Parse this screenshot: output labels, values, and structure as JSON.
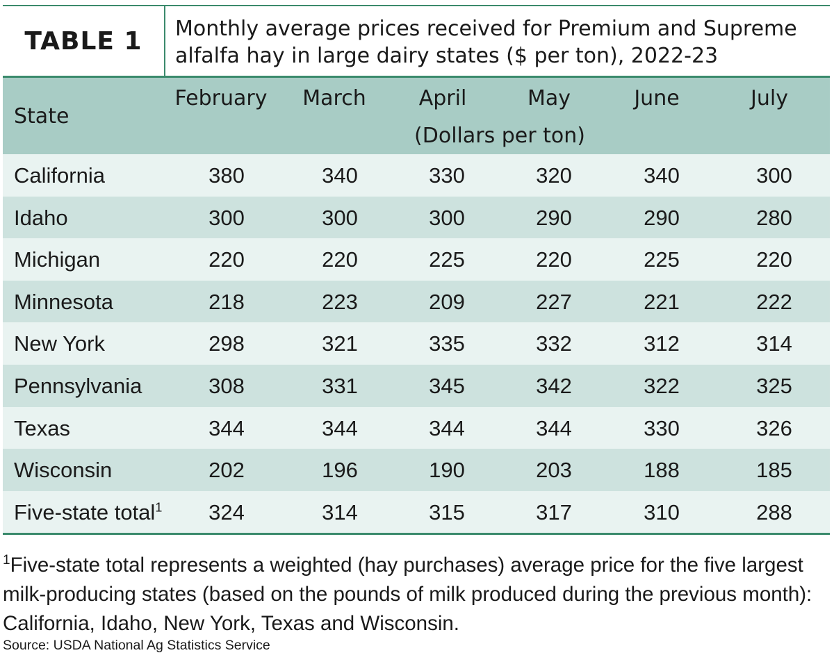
{
  "header": {
    "label": "TABLE 1",
    "title": "Monthly average prices received for Premium and Supreme alfalfa hay in large dairy states ($ per ton), 2022-23"
  },
  "table": {
    "columns": [
      "State",
      "February",
      "March",
      "April",
      "May",
      "June",
      "July"
    ],
    "unit": "(Dollars per ton)",
    "rows": [
      {
        "state": "California",
        "values": [
          380,
          340,
          330,
          320,
          340,
          300
        ]
      },
      {
        "state": "Idaho",
        "values": [
          300,
          300,
          300,
          290,
          290,
          280
        ]
      },
      {
        "state": "Michigan",
        "values": [
          220,
          220,
          225,
          220,
          225,
          220
        ]
      },
      {
        "state": "Minnesota",
        "values": [
          218,
          223,
          209,
          227,
          221,
          222
        ]
      },
      {
        "state": "New York",
        "values": [
          298,
          321,
          335,
          332,
          312,
          314
        ]
      },
      {
        "state": "Pennsylvania",
        "values": [
          308,
          331,
          345,
          342,
          322,
          325
        ]
      },
      {
        "state": "Texas",
        "values": [
          344,
          344,
          344,
          344,
          330,
          326
        ]
      },
      {
        "state": "Wisconsin",
        "values": [
          202,
          196,
          190,
          203,
          188,
          185
        ]
      },
      {
        "state": "Five-state total",
        "note": "1",
        "values": [
          324,
          314,
          315,
          317,
          310,
          288
        ]
      }
    ]
  },
  "footnote": {
    "marker": "1",
    "text": "Five-state total represents a weighted (hay purchases) average price for the five largest milk-producing states (based on the pounds of milk produced during the previous month): California, Idaho, New York, Texas and Wisconsin."
  },
  "source": "Source: USDA National Ag Statistics Service"
}
